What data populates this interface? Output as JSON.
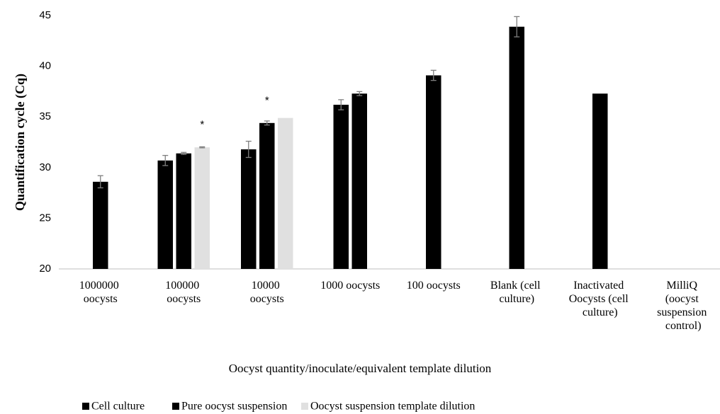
{
  "chart_data": {
    "type": "bar",
    "y_label": "Quantification cycle (Cq)",
    "x_label": "Oocyst quantity/inoculate/equivalent template dilution",
    "categories": [
      "1000000 oocysts",
      "100000 oocysts",
      "10000 oocysts",
      "1000 oocysts",
      "100 oocysts",
      "Blank (cell culture)",
      "Inactivated Oocysts (cell culture)",
      "MilliQ (oocyst suspension control)"
    ],
    "series": [
      {
        "name": "Cell culture",
        "color": "#000000",
        "values": [
          28.6,
          30.7,
          31.8,
          36.2,
          39.1,
          43.9,
          37.3,
          null
        ],
        "errors": [
          0.6,
          0.5,
          0.8,
          0.5,
          0.5,
          1.0,
          null,
          null
        ]
      },
      {
        "name": "Pure oocyst suspension",
        "color": "#000000",
        "values": [
          null,
          31.4,
          34.4,
          37.3,
          null,
          null,
          null,
          null
        ],
        "errors": [
          null,
          0.1,
          0.2,
          0.2,
          null,
          null,
          null,
          null
        ]
      },
      {
        "name": "Oocyst suspension template dilution",
        "color": "#e0e0e0",
        "values": [
          null,
          32.0,
          34.9,
          null,
          null,
          null,
          null,
          null
        ],
        "errors": [
          null,
          0.05,
          null,
          null,
          null,
          null,
          null,
          null
        ]
      }
    ],
    "annotations": [
      {
        "text": "*",
        "category": 1,
        "series": 2,
        "y": 34.2
      },
      {
        "text": "*",
        "category": 2,
        "series": 1,
        "y": 36.6
      }
    ],
    "ylim": [
      20,
      45
    ],
    "yticks": [
      20,
      25,
      30,
      35,
      40,
      45
    ],
    "grid": false,
    "legend": "bottom"
  }
}
